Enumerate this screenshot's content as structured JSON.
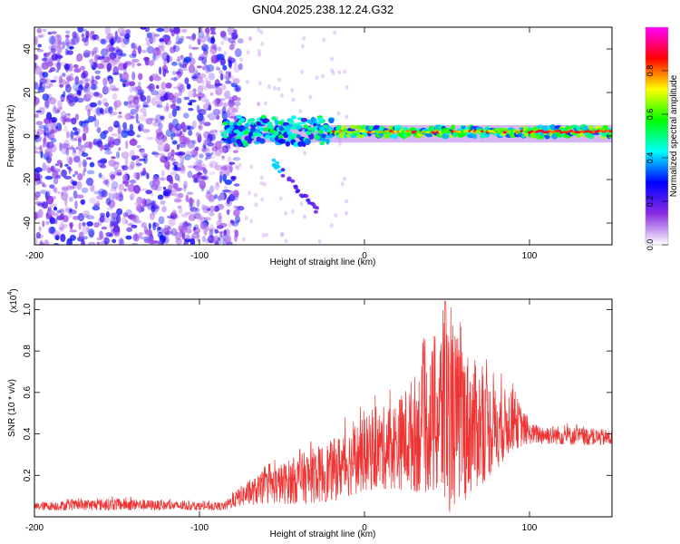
{
  "title": "GN04.2025.238.12.24.G32",
  "chart_data": [
    {
      "type": "heatmap",
      "name": "spectrogram",
      "xlabel": "Height of straight line (km)",
      "ylabel": "Frequency (Hz)",
      "xlim": [
        -200,
        150
      ],
      "ylim": [
        -50,
        50
      ],
      "xticks": [
        -200,
        -100,
        0,
        100
      ],
      "yticks": [
        -40,
        -20,
        0,
        20,
        40
      ],
      "colorbar": {
        "label": "Normalized spectral amplitude",
        "range": [
          0,
          1
        ],
        "ticks": [
          0.0,
          0.2,
          0.4,
          0.6,
          0.8
        ],
        "tick_labels": [
          "0.0",
          "0.2",
          "0.4",
          "0.6",
          "0.8"
        ],
        "stops": [
          "#ffffff",
          "#8a2be2",
          "#0000ff",
          "#00ffff",
          "#00ff00",
          "#ffff00",
          "#ff0000",
          "#ff00ff"
        ]
      },
      "features": {
        "noise_region_x": [
          -200,
          -85
        ],
        "signal_line_freq": 2,
        "signal_start_x": -85,
        "high_amplitude_x": [
          -20,
          150
        ],
        "branch": {
          "x": [
            -55,
            -28
          ],
          "y": [
            -12,
            -35
          ]
        }
      }
    },
    {
      "type": "line",
      "name": "snr",
      "xlabel": "Height of straight line (km)",
      "ylabel": "SNR (10 * v/v)",
      "multiplier_label": "(x10",
      "multiplier_exp": "4",
      "xlim": [
        -200,
        150
      ],
      "ylim": [
        0,
        1.05
      ],
      "xticks": [
        -200,
        -100,
        0,
        100
      ],
      "yticks": [
        0.2,
        0.4,
        0.6,
        0.8,
        1.0
      ],
      "ytick_labels": [
        "0.2",
        "0.4",
        "0.6",
        "0.8",
        "1.0"
      ],
      "color": "#ee3333",
      "envelope": {
        "x": [
          -200,
          -150,
          -100,
          -85,
          -75,
          -60,
          -40,
          -20,
          0,
          20,
          40,
          48,
          60,
          80,
          90,
          100,
          150
        ],
        "mean": [
          0.05,
          0.06,
          0.05,
          0.05,
          0.1,
          0.14,
          0.18,
          0.22,
          0.3,
          0.35,
          0.45,
          0.5,
          0.45,
          0.42,
          0.47,
          0.4,
          0.38
        ],
        "amp": [
          0.02,
          0.03,
          0.02,
          0.02,
          0.05,
          0.08,
          0.12,
          0.15,
          0.18,
          0.22,
          0.35,
          0.5,
          0.38,
          0.2,
          0.15,
          0.05,
          0.04
        ]
      }
    }
  ]
}
